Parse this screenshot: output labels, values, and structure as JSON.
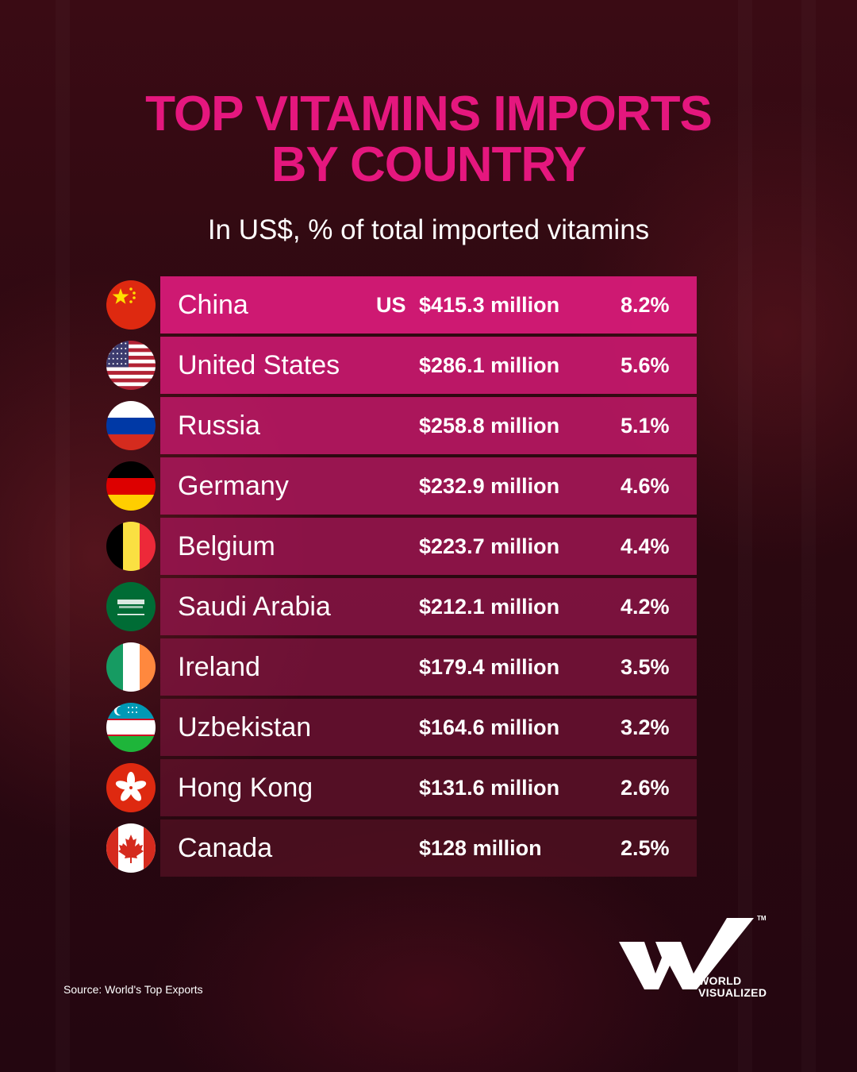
{
  "header": {
    "title_line1": "TOP VITAMINS IMPORTS",
    "title_line2": "BY COUNTRY",
    "subtitle": "In US$, % of total imported vitamins"
  },
  "colors": {
    "title": "#e5177e",
    "bar_top": "#d41a76",
    "bar_bottom": "#5a1226",
    "text": "#ffffff"
  },
  "chart_data": {
    "type": "table",
    "title": "TOP VITAMINS IMPORTS BY COUNTRY",
    "subtitle": "In US$, % of total imported vitamins",
    "value_prefix": "US",
    "rows": [
      {
        "country": "China",
        "flag_icon": "china-flag-icon",
        "value_label": "$415.3 million",
        "value_musd": 415.3,
        "pct_label": "8.2%",
        "pct": 8.2
      },
      {
        "country": "United States",
        "flag_icon": "usa-flag-icon",
        "value_label": "$286.1 million",
        "value_musd": 286.1,
        "pct_label": "5.6%",
        "pct": 5.6
      },
      {
        "country": "Russia",
        "flag_icon": "russia-flag-icon",
        "value_label": "$258.8 million",
        "value_musd": 258.8,
        "pct_label": "5.1%",
        "pct": 5.1
      },
      {
        "country": "Germany",
        "flag_icon": "germany-flag-icon",
        "value_label": "$232.9 million",
        "value_musd": 232.9,
        "pct_label": "4.6%",
        "pct": 4.6
      },
      {
        "country": "Belgium",
        "flag_icon": "belgium-flag-icon",
        "value_label": "$223.7 million",
        "value_musd": 223.7,
        "pct_label": "4.4%",
        "pct": 4.4
      },
      {
        "country": "Saudi Arabia",
        "flag_icon": "saudi-arabia-flag-icon",
        "value_label": "$212.1 million",
        "value_musd": 212.1,
        "pct_label": "4.2%",
        "pct": 4.2
      },
      {
        "country": "Ireland",
        "flag_icon": "ireland-flag-icon",
        "value_label": "$179.4 million",
        "value_musd": 179.4,
        "pct_label": "3.5%",
        "pct": 3.5
      },
      {
        "country": "Uzbekistan",
        "flag_icon": "uzbekistan-flag-icon",
        "value_label": "$164.6 million",
        "value_musd": 164.6,
        "pct_label": "3.2%",
        "pct": 3.2
      },
      {
        "country": "Hong Kong",
        "flag_icon": "hong-kong-flag-icon",
        "value_label": "$131.6 million",
        "value_musd": 131.6,
        "pct_label": "2.6%",
        "pct": 2.6
      },
      {
        "country": "Canada",
        "flag_icon": "canada-flag-icon",
        "value_label": "$128 million",
        "value_musd": 128,
        "pct_label": "2.5%",
        "pct": 2.5
      }
    ]
  },
  "footer": {
    "source": "Source: World's Top Exports",
    "logo_icon": "world-visualized-logo-icon",
    "logo_line1": "WORLD",
    "logo_line2": "VISUALIZED",
    "logo_tm": "TM"
  }
}
